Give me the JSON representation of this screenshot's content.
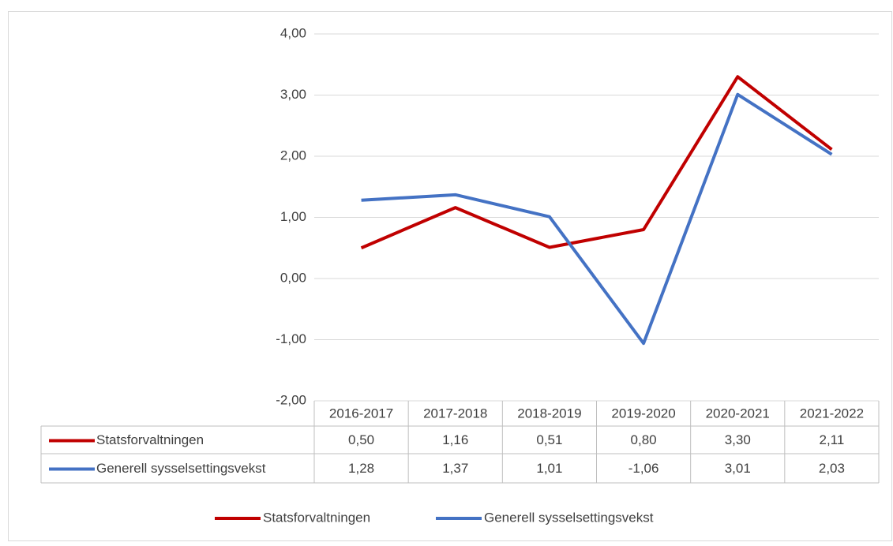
{
  "chart_data": {
    "type": "line",
    "categories": [
      "2016-2017",
      "2017-2018",
      "2018-2019",
      "2019-2020",
      "2020-2021",
      "2021-2022"
    ],
    "series": [
      {
        "name": "Statsforvaltningen",
        "color": "#c00000",
        "values": [
          0.5,
          1.16,
          0.51,
          0.8,
          3.3,
          2.11
        ],
        "value_labels": [
          "0,50",
          "1,16",
          "0,51",
          "0,80",
          "3,30",
          "2,11"
        ]
      },
      {
        "name": "Generell sysselsettingsvekst",
        "color": "#4472c4",
        "values": [
          1.28,
          1.37,
          1.01,
          -1.06,
          3.01,
          2.03
        ],
        "value_labels": [
          "1,28",
          "1,37",
          "1,01",
          "-1,06",
          "3,01",
          "2,03"
        ]
      }
    ],
    "ylim": [
      -2,
      4
    ],
    "yticks": [
      {
        "value": -2,
        "label": "-2,00"
      },
      {
        "value": -1,
        "label": "-1,00"
      },
      {
        "value": 0,
        "label": "0,00"
      },
      {
        "value": 1,
        "label": "1,00"
      },
      {
        "value": 2,
        "label": "2,00"
      },
      {
        "value": 3,
        "label": "3,00"
      },
      {
        "value": 4,
        "label": "4,00"
      }
    ],
    "grid": true,
    "legend": "bottom",
    "data_table": true
  }
}
